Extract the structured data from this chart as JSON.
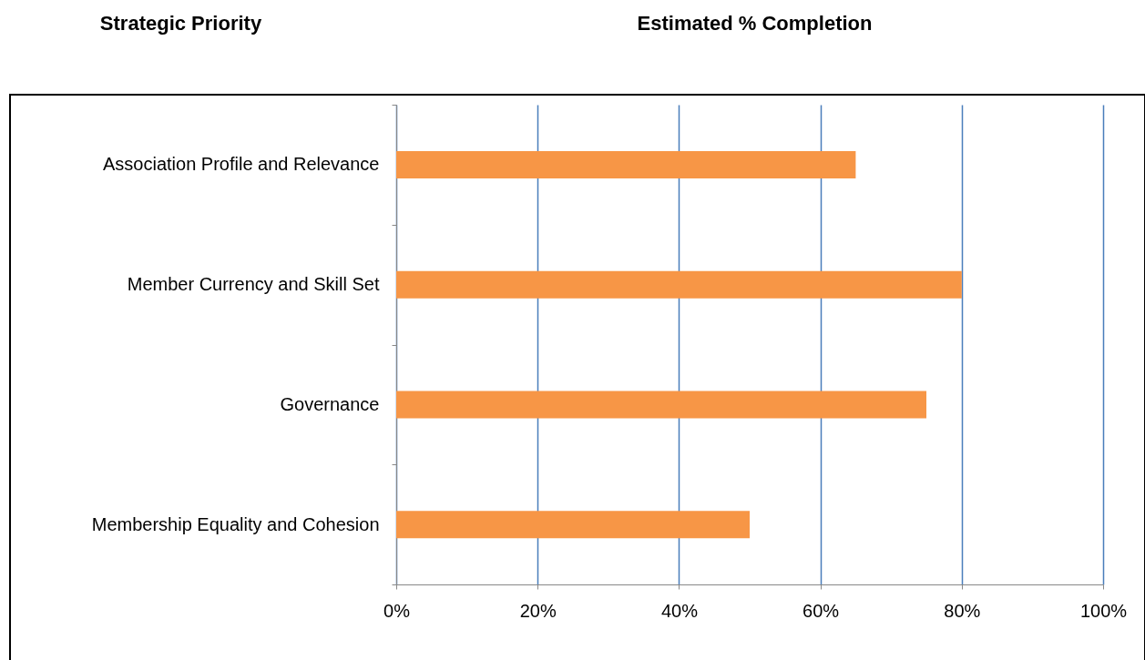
{
  "chart_data": {
    "type": "bar",
    "orientation": "horizontal",
    "xlabel": "Estimated % Completion",
    "ylabel": "Strategic Priority",
    "categories": [
      "Association Profile and Relevance",
      "Member Currency and Skill Set",
      "Governance",
      "Membership Equality and Cohesion"
    ],
    "values": [
      65,
      80,
      75,
      50
    ],
    "color": "#f79646",
    "xlim": [
      0,
      100
    ],
    "xticks": [
      {
        "value": 0,
        "label": "0%"
      },
      {
        "value": 20,
        "label": "20%"
      },
      {
        "value": 40,
        "label": "40%"
      },
      {
        "value": 60,
        "label": "60%"
      },
      {
        "value": 80,
        "label": "80%"
      },
      {
        "value": 100,
        "label": "100%"
      }
    ],
    "grid": "x"
  }
}
